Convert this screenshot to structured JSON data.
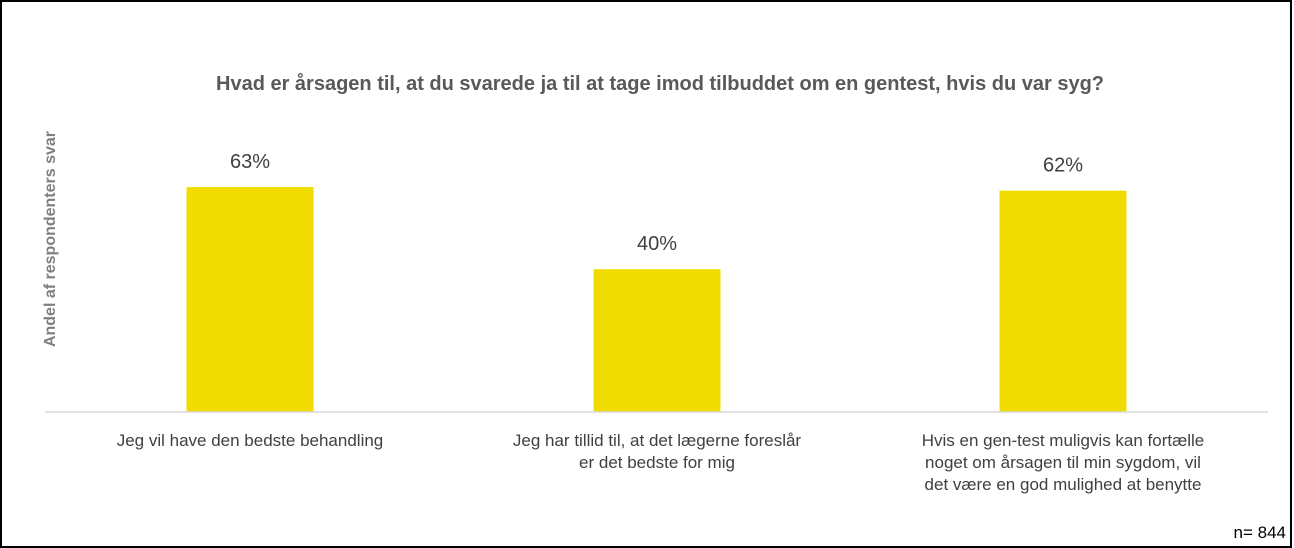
{
  "chart_data": {
    "type": "bar",
    "title": "Hvad er årsagen til, at du svarede ja til at tage imod tilbuddet om en gentest, hvis du var syg?",
    "xlabel": "",
    "ylabel": "Andel af respondenters svar",
    "categories": [
      "Jeg vil have den bedste behandling",
      "Jeg har tillid til, at det lægerne foreslår er det bedste for mig",
      "Hvis en gen-test muligvis kan fortælle noget om årsagen til min sygdom, vil det være en god mulighed at benytte"
    ],
    "values": [
      63,
      40,
      62
    ],
    "value_labels": [
      "63%",
      "40%",
      "62%"
    ],
    "ylim": [
      0,
      100
    ],
    "grid": false,
    "legend": "none",
    "bar_color": "#f0dc00"
  },
  "note": "n= 844"
}
